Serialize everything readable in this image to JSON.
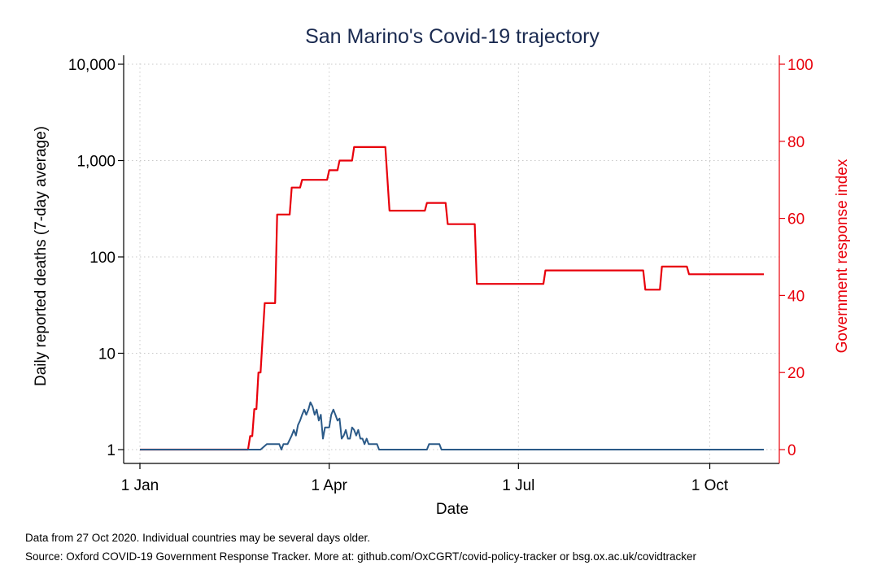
{
  "chart_data": {
    "type": "line",
    "title": "San Marino's Covid-19 trajectory",
    "xlabel": "Date",
    "ylabel_left": "Daily reported deaths (7-day average)",
    "ylabel_right": "Government response index",
    "x_ticks": [
      "1 Jan",
      "1 Apr",
      "1 Jul",
      "1 Oct"
    ],
    "x_tick_dates": [
      "2020-01-01",
      "2020-04-01",
      "2020-07-01",
      "2020-10-01"
    ],
    "xlim": [
      "2020-01-01",
      "2020-10-27"
    ],
    "y_left_scale": "log",
    "y_left_ticks": [
      {
        "value": 1,
        "label": "1"
      },
      {
        "value": 10,
        "label": "10"
      },
      {
        "value": 100,
        "label": "100"
      },
      {
        "value": 1000,
        "label": "1,000"
      },
      {
        "value": 10000,
        "label": "10,000"
      }
    ],
    "y_left_lim": [
      1,
      10000
    ],
    "y_right_ticks": [
      {
        "value": 0,
        "label": "0"
      },
      {
        "value": 20,
        "label": "20"
      },
      {
        "value": 40,
        "label": "40"
      },
      {
        "value": 60,
        "label": "60"
      },
      {
        "value": 80,
        "label": "80"
      },
      {
        "value": 100,
        "label": "100"
      }
    ],
    "y_right_lim": [
      0,
      100
    ],
    "grid": true,
    "colors": {
      "deaths": "#2b5a88",
      "response": "#e8000b",
      "title": "#1a2a50"
    },
    "series": [
      {
        "axis": "right",
        "values": [
          [
            "2020-01-01",
            0
          ],
          [
            "2020-02-22",
            0
          ],
          [
            "2020-02-23",
            3.5
          ],
          [
            "2020-02-24",
            3.5
          ],
          [
            "2020-02-25",
            10.5
          ],
          [
            "2020-02-26",
            10.5
          ],
          [
            "2020-02-27",
            20
          ],
          [
            "2020-02-28",
            20
          ],
          [
            "2020-03-01",
            38
          ],
          [
            "2020-03-06",
            38
          ],
          [
            "2020-03-07",
            61
          ],
          [
            "2020-03-13",
            61
          ],
          [
            "2020-03-14",
            68
          ],
          [
            "2020-03-18",
            68
          ],
          [
            "2020-03-19",
            70
          ],
          [
            "2020-03-31",
            70
          ],
          [
            "2020-04-01",
            72.5
          ],
          [
            "2020-04-05",
            72.5
          ],
          [
            "2020-04-06",
            75
          ],
          [
            "2020-04-12",
            75
          ],
          [
            "2020-04-13",
            78.5
          ],
          [
            "2020-04-28",
            78.5
          ],
          [
            "2020-04-30",
            62
          ],
          [
            "2020-05-17",
            62
          ],
          [
            "2020-05-18",
            64
          ],
          [
            "2020-05-27",
            64
          ],
          [
            "2020-05-28",
            58.5
          ],
          [
            "2020-06-10",
            58.5
          ],
          [
            "2020-06-11",
            43
          ],
          [
            "2020-07-13",
            43
          ],
          [
            "2020-07-14",
            46.5
          ],
          [
            "2020-08-30",
            46.5
          ],
          [
            "2020-08-31",
            41.5
          ],
          [
            "2020-09-07",
            41.5
          ],
          [
            "2020-09-08",
            47.5
          ],
          [
            "2020-09-20",
            47.5
          ],
          [
            "2020-09-21",
            45.5
          ],
          [
            "2020-10-27",
            45.5
          ]
        ]
      },
      {
        "axis": "left",
        "values": [
          [
            "2020-01-01",
            1
          ],
          [
            "2020-02-28",
            1
          ],
          [
            "2020-03-02",
            1.14
          ],
          [
            "2020-03-08",
            1.14
          ],
          [
            "2020-03-09",
            1
          ],
          [
            "2020-03-10",
            1.14
          ],
          [
            "2020-03-12",
            1.14
          ],
          [
            "2020-03-14",
            1.4
          ],
          [
            "2020-03-15",
            1.6
          ],
          [
            "2020-03-16",
            1.4
          ],
          [
            "2020-03-17",
            1.8
          ],
          [
            "2020-03-18",
            2.0
          ],
          [
            "2020-03-19",
            2.3
          ],
          [
            "2020-03-20",
            2.6
          ],
          [
            "2020-03-21",
            2.3
          ],
          [
            "2020-03-22",
            2.6
          ],
          [
            "2020-03-23",
            3.1
          ],
          [
            "2020-03-24",
            2.8
          ],
          [
            "2020-03-25",
            2.3
          ],
          [
            "2020-03-26",
            2.6
          ],
          [
            "2020-03-27",
            2.0
          ],
          [
            "2020-03-28",
            2.3
          ],
          [
            "2020-03-29",
            1.3
          ],
          [
            "2020-03-30",
            1.7
          ],
          [
            "2020-04-01",
            1.7
          ],
          [
            "2020-04-02",
            2.3
          ],
          [
            "2020-04-03",
            2.6
          ],
          [
            "2020-04-04",
            2.3
          ],
          [
            "2020-04-05",
            2.0
          ],
          [
            "2020-04-06",
            2.1
          ],
          [
            "2020-04-07",
            1.3
          ],
          [
            "2020-04-08",
            1.4
          ],
          [
            "2020-04-09",
            1.6
          ],
          [
            "2020-04-10",
            1.3
          ],
          [
            "2020-04-11",
            1.3
          ],
          [
            "2020-04-12",
            1.7
          ],
          [
            "2020-04-13",
            1.6
          ],
          [
            "2020-04-14",
            1.4
          ],
          [
            "2020-04-15",
            1.6
          ],
          [
            "2020-04-16",
            1.3
          ],
          [
            "2020-04-17",
            1.3
          ],
          [
            "2020-04-18",
            1.14
          ],
          [
            "2020-04-19",
            1.3
          ],
          [
            "2020-04-20",
            1.14
          ],
          [
            "2020-04-24",
            1.14
          ],
          [
            "2020-04-25",
            1
          ],
          [
            "2020-05-18",
            1
          ],
          [
            "2020-05-19",
            1.14
          ],
          [
            "2020-05-24",
            1.14
          ],
          [
            "2020-05-25",
            1
          ],
          [
            "2020-10-27",
            1
          ]
        ]
      }
    ]
  },
  "notes": {
    "line1": "Data from 27 Oct 2020. Individual countries may be several days older.",
    "line2": "Source: Oxford COVID-19 Government Response Tracker. More at: github.com/OxCGRT/covid-policy-tracker or bsg.ox.ac.uk/covidtracker"
  }
}
